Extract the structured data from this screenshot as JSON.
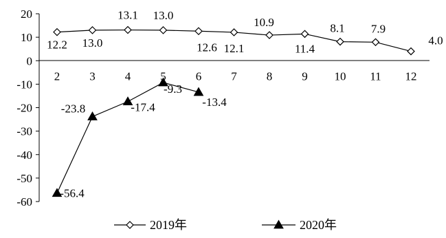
{
  "chart_data": {
    "type": "line",
    "title": "",
    "xlabel": "",
    "ylabel": "",
    "x": [
      "2",
      "3",
      "4",
      "5",
      "6",
      "7",
      "8",
      "9",
      "10",
      "11",
      "12"
    ],
    "ylim": [
      -60,
      20
    ],
    "yticks": [
      "20",
      "10",
      "0",
      "-10",
      "-20",
      "-30",
      "-40",
      "-50",
      "-60"
    ],
    "grid": false,
    "legend_position": "bottom",
    "series": [
      {
        "name": "2019年",
        "marker": "open-diamond",
        "color": "#000000",
        "values": [
          12.2,
          13.0,
          13.1,
          13.0,
          12.6,
          12.1,
          10.9,
          11.4,
          8.1,
          7.9,
          4.0
        ],
        "labels": [
          "12.2",
          "13.0",
          "13.1",
          "13.0",
          "12.6",
          "12.1",
          "10.9",
          "11.4",
          "8.1",
          "7.9",
          "4.0"
        ]
      },
      {
        "name": "2020年",
        "marker": "filled-triangle",
        "color": "#000000",
        "values": [
          -56.4,
          -23.8,
          -17.4,
          -9.3,
          -13.4,
          null,
          null,
          null,
          null,
          null,
          null
        ],
        "labels": [
          "-56.4",
          "-23.8",
          "-17.4",
          "-9.3",
          "-13.4",
          null,
          null,
          null,
          null,
          null,
          null
        ]
      }
    ]
  }
}
